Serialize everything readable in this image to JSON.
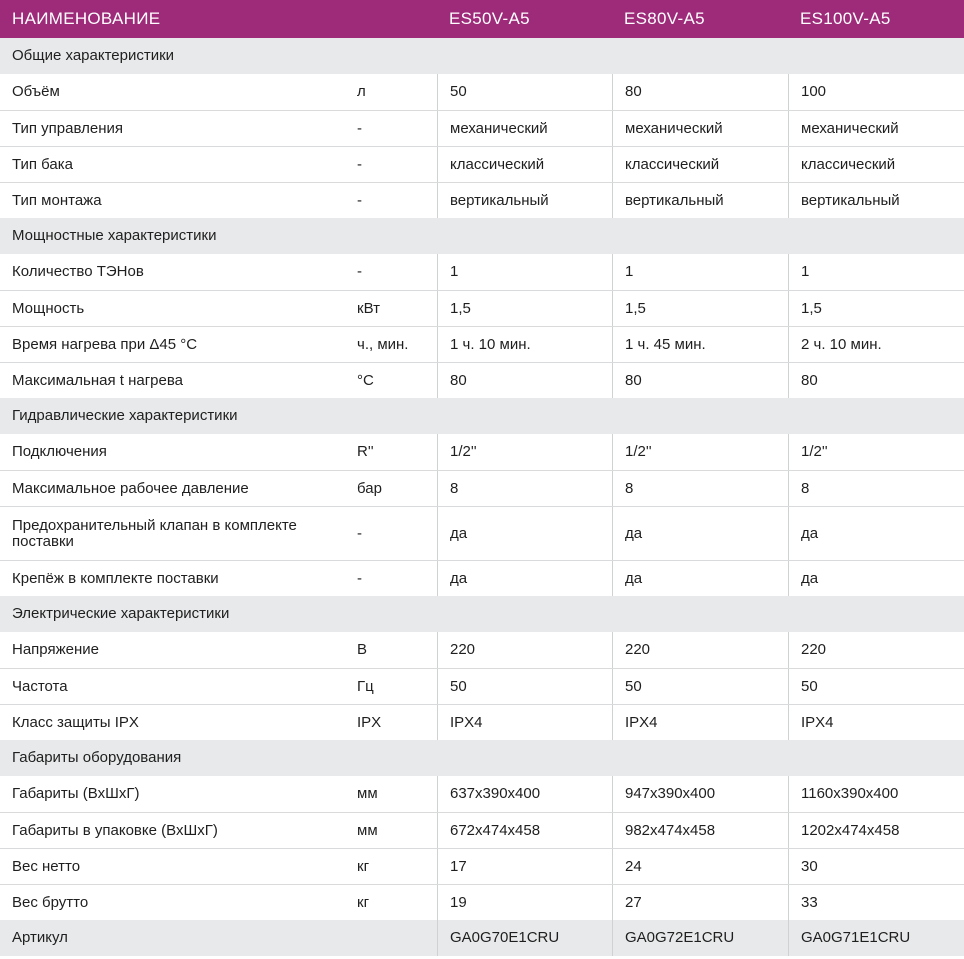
{
  "header": {
    "name": "НАИМЕНОВАНИЕ",
    "models": [
      "ES50V-A5",
      "ES80V-A5",
      "ES100V-A5"
    ]
  },
  "sections": [
    {
      "title": "Общие характеристики",
      "rows": [
        {
          "name": "Объём",
          "unit": "л",
          "values": [
            "50",
            "80",
            "100"
          ]
        },
        {
          "name": "Тип управления",
          "unit": "-",
          "values": [
            "механический",
            "механический",
            "механический"
          ]
        },
        {
          "name": "Тип бака",
          "unit": "-",
          "values": [
            "классический",
            "классический",
            "классический"
          ]
        },
        {
          "name": "Тип монтажа",
          "unit": "-",
          "values": [
            "вертикальный",
            "вертикальный",
            "вертикальный"
          ]
        }
      ]
    },
    {
      "title": "Мощностные характеристики",
      "rows": [
        {
          "name": "Количество ТЭНов",
          "unit": "-",
          "values": [
            "1",
            "1",
            "1"
          ]
        },
        {
          "name": "Мощность",
          "unit": "кВт",
          "values": [
            "1,5",
            "1,5",
            "1,5"
          ]
        },
        {
          "name": "Время нагрева при Δ45 °С",
          "unit": "ч., мин.",
          "values": [
            "1 ч. 10 мин.",
            "1 ч. 45 мин.",
            "2 ч. 10 мин."
          ]
        },
        {
          "name": "Максимальная t нагрева",
          "unit": "°С",
          "values": [
            "80",
            "80",
            "80"
          ]
        }
      ]
    },
    {
      "title": "Гидравлические характеристики",
      "rows": [
        {
          "name": "Подключения",
          "unit": "R''",
          "values": [
            "1/2''",
            "1/2''",
            "1/2''"
          ]
        },
        {
          "name": "Максимальное рабочее давление",
          "unit": "бар",
          "values": [
            "8",
            "8",
            "8"
          ]
        },
        {
          "name": "Предохранительный клапан в комплекте поставки",
          "unit": "-",
          "values": [
            "да",
            "да",
            "да"
          ],
          "tall": true
        },
        {
          "name": "Крепёж в комплекте поставки",
          "unit": "-",
          "values": [
            "да",
            "да",
            "да"
          ]
        }
      ]
    },
    {
      "title": "Электрические характеристики",
      "rows": [
        {
          "name": "Напряжение",
          "unit": "В",
          "values": [
            "220",
            "220",
            "220"
          ]
        },
        {
          "name": "Частота",
          "unit": "Гц",
          "values": [
            "50",
            "50",
            "50"
          ]
        },
        {
          "name": "Класс защиты IPX",
          "unit": "IPX",
          "values": [
            "IPX4",
            "IPX4",
            "IPX4"
          ]
        }
      ]
    },
    {
      "title": "Габариты оборудования",
      "rows": [
        {
          "name": "Габариты (ВхШхГ)",
          "unit": "мм",
          "values": [
            "637x390x400",
            "947x390x400",
            "1160x390x400"
          ]
        },
        {
          "name": "Габариты в упаковке (ВхШхГ)",
          "unit": "мм",
          "values": [
            "672x474x458",
            "982x474x458",
            "1202x474x458"
          ]
        },
        {
          "name": "Вес нетто",
          "unit": "кг",
          "values": [
            "17",
            "24",
            "30"
          ]
        },
        {
          "name": "Вес брутто",
          "unit": "кг",
          "values": [
            "19",
            "27",
            "33"
          ]
        }
      ]
    }
  ],
  "footer": {
    "name": "Артикул",
    "unit": "",
    "values": [
      "GA0G70E1CRU",
      "GA0G72E1CRU",
      "GA0G71E1CRU"
    ]
  }
}
